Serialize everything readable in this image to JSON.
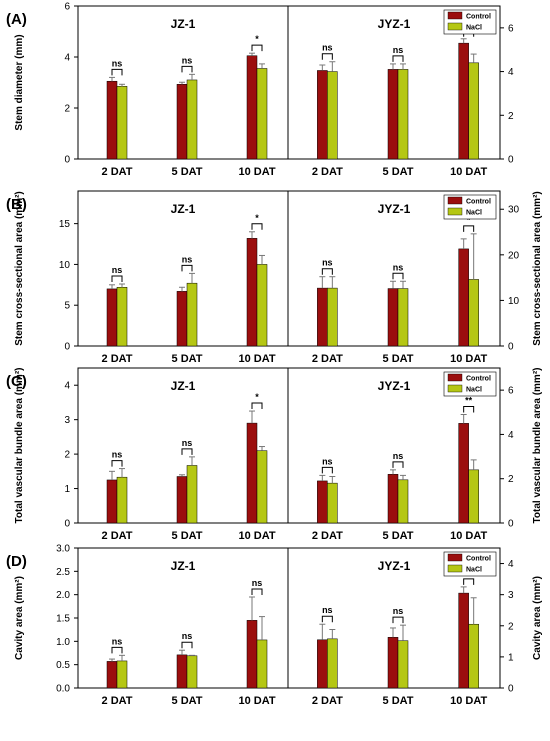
{
  "chart_data": {
    "type": "bar",
    "categories": [
      "2 DAT",
      "5 DAT",
      "10 DAT"
    ],
    "legend": [
      {
        "label": "Control",
        "color": "#9b0e0e"
      },
      {
        "label": "NaCl",
        "color": "#b5c714"
      }
    ],
    "panels": [
      {
        "label": "(A)",
        "ylabel": "Stem diameter (mm)",
        "ylabel_right": "",
        "left": {
          "title": "JZ-1",
          "ylim": [
            0,
            6
          ],
          "ticks": [
            "0",
            "2",
            "4",
            "6"
          ],
          "control": [
            3.05,
            2.93,
            4.05
          ],
          "control_err": [
            0.15,
            0.08,
            0.1
          ],
          "nacl": [
            2.85,
            3.1,
            3.55
          ],
          "nacl_err": [
            0.08,
            0.22,
            0.18
          ],
          "sig": [
            "ns",
            "ns",
            "*"
          ]
        },
        "right": {
          "title": "JYZ-1",
          "ylim": [
            0,
            7
          ],
          "ticks": [
            "0",
            "2",
            "4",
            "6"
          ],
          "control": [
            4.05,
            4.1,
            5.3
          ],
          "control_err": [
            0.25,
            0.25,
            0.2
          ],
          "nacl": [
            4.0,
            4.1,
            4.4
          ],
          "nacl_err": [
            0.45,
            0.25,
            0.4
          ],
          "sig": [
            "ns",
            "ns",
            "*"
          ]
        }
      },
      {
        "label": "(B)",
        "ylabel": "Stem cross-sectional area (mm²)",
        "ylabel_right": "Stem cross-sectional area (mm²)",
        "left": {
          "title": "JZ-1",
          "ylim": [
            0,
            19
          ],
          "ticks": [
            "0",
            "5",
            "10",
            "15"
          ],
          "control": [
            7.0,
            6.7,
            13.2
          ],
          "control_err": [
            0.5,
            0.5,
            0.8
          ],
          "nacl": [
            7.2,
            7.7,
            10.0
          ],
          "nacl_err": [
            0.4,
            1.2,
            1.1
          ],
          "sig": [
            "ns",
            "ns",
            "*"
          ]
        },
        "right": {
          "title": "JYZ-1",
          "ylim": [
            0,
            34
          ],
          "ticks": [
            "0",
            "10",
            "20",
            "30"
          ],
          "control": [
            12.7,
            12.6,
            21.3
          ],
          "control_err": [
            2.5,
            1.6,
            2.2
          ],
          "nacl": [
            12.7,
            12.6,
            14.6
          ],
          "nacl_err": [
            2.5,
            1.6,
            10.0
          ],
          "sig": [
            "ns",
            "ns",
            "*"
          ]
        }
      },
      {
        "label": "(C)",
        "ylabel": "Total vascular bundle area (mm²)",
        "ylabel_right": "Total vascular bundle area (mm²)",
        "left": {
          "title": "JZ-1",
          "ylim": [
            0,
            4.5
          ],
          "ticks": [
            "0",
            "1",
            "2",
            "3",
            "4"
          ],
          "control": [
            1.25,
            1.35,
            2.9
          ],
          "control_err": [
            0.25,
            0.05,
            0.35
          ],
          "nacl": [
            1.33,
            1.67,
            2.1
          ],
          "nacl_err": [
            0.25,
            0.25,
            0.12
          ],
          "sig": [
            "ns",
            "ns",
            "*"
          ]
        },
        "right": {
          "title": "JYZ-1",
          "ylim": [
            0,
            7
          ],
          "ticks": [
            "0",
            "2",
            "4",
            "6"
          ],
          "control": [
            1.9,
            2.2,
            4.5
          ],
          "control_err": [
            0.25,
            0.2,
            0.4
          ],
          "nacl": [
            1.8,
            1.95,
            2.4
          ],
          "nacl_err": [
            0.3,
            0.2,
            0.45
          ],
          "sig": [
            "ns",
            "ns",
            "**"
          ]
        }
      },
      {
        "label": "(D)",
        "ylabel": "Cavity area (mm²)",
        "ylabel_right": "Cavity area (mm²)",
        "left": {
          "title": "JZ-1",
          "ylim": [
            0,
            3.0
          ],
          "ticks": [
            "0.0",
            "0.5",
            "1.0",
            "1.5",
            "2.0",
            "2.5",
            "3.0"
          ],
          "control": [
            0.57,
            0.71,
            1.45
          ],
          "control_err": [
            0.05,
            0.1,
            0.5
          ],
          "nacl": [
            0.58,
            0.69,
            1.03
          ],
          "nacl_err": [
            0.12,
            0.01,
            0.5
          ],
          "sig": [
            "ns",
            "ns",
            "ns"
          ]
        },
        "right": {
          "title": "JYZ-1",
          "ylim": [
            0,
            4.5
          ],
          "ticks": [
            "0",
            "1",
            "2",
            "3",
            "4"
          ],
          "control": [
            1.55,
            1.63,
            3.05
          ],
          "control_err": [
            0.5,
            0.3,
            0.2
          ],
          "nacl": [
            1.58,
            1.52,
            2.05
          ],
          "nacl_err": [
            0.3,
            0.5,
            0.85
          ],
          "sig": [
            "ns",
            "ns",
            "ns"
          ]
        }
      }
    ]
  }
}
